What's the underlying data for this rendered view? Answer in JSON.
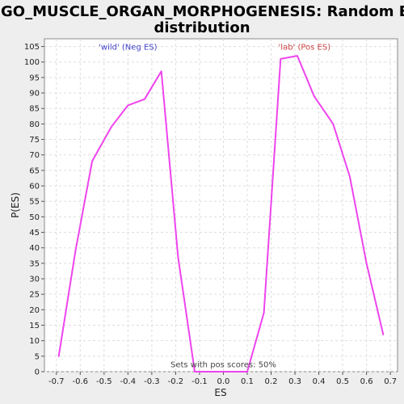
{
  "chart_data": {
    "type": "line",
    "title_lines": [
      "GO_MUSCLE_ORGAN_MORPHOGENESIS: Random ES",
      "distribution"
    ],
    "xlabel": "ES",
    "ylabel": "P(ES)",
    "xlim": [
      -0.75,
      0.73
    ],
    "ylim": [
      0,
      107.5
    ],
    "xticks": [
      -0.7,
      -0.6,
      -0.5,
      -0.4,
      -0.3,
      -0.2,
      -0.1,
      0.0,
      0.1,
      0.2,
      0.3,
      0.4,
      0.5,
      0.6,
      0.7
    ],
    "xtick_labels": [
      "-0.7",
      "-0.6",
      "-0.5",
      "-0.4",
      "-0.3",
      "-0.2",
      "-0.1",
      "0.0",
      "0.1",
      "0.2",
      "0.3",
      "0.4",
      "0.5",
      "0.6",
      "0.7"
    ],
    "yticks": [
      0,
      5,
      10,
      15,
      20,
      25,
      30,
      35,
      40,
      45,
      50,
      55,
      60,
      65,
      70,
      75,
      80,
      85,
      90,
      95,
      100,
      105
    ],
    "grid": true,
    "series": [
      {
        "color": "#ee44ee",
        "x": [
          -0.69,
          -0.62,
          -0.55,
          -0.47,
          -0.4,
          -0.33,
          -0.26,
          -0.19,
          -0.12,
          0.1,
          0.17,
          0.24,
          0.31,
          0.38,
          0.46,
          0.53,
          0.6,
          0.67
        ],
        "y": [
          5,
          39,
          68,
          79,
          86,
          88,
          97,
          37,
          0,
          0,
          19,
          101,
          102,
          89,
          80,
          63,
          35,
          12
        ]
      }
    ],
    "annotations": [
      {
        "text": "'wild' (Neg ES)",
        "x": -0.4,
        "y": 104,
        "color": "#4444cc"
      },
      {
        "text": "'lab' (Pos ES)",
        "x": 0.34,
        "y": 104,
        "color": "#cc4444"
      },
      {
        "text": "Sets with pos scores: 50%",
        "x": 0.0,
        "y": 1.5,
        "color": "#444444"
      }
    ]
  }
}
